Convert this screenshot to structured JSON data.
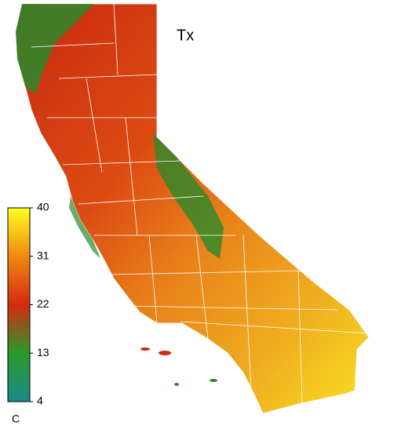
{
  "map": {
    "title": "Tx",
    "colorbar": {
      "range": [
        4,
        40
      ],
      "ticks": [
        4,
        13,
        22,
        31,
        40
      ],
      "unit": "C",
      "colors": [
        "#1a8a8a",
        "#2a9a2a",
        "#d42a10",
        "#f08a10",
        "#ffff20"
      ]
    }
  }
}
